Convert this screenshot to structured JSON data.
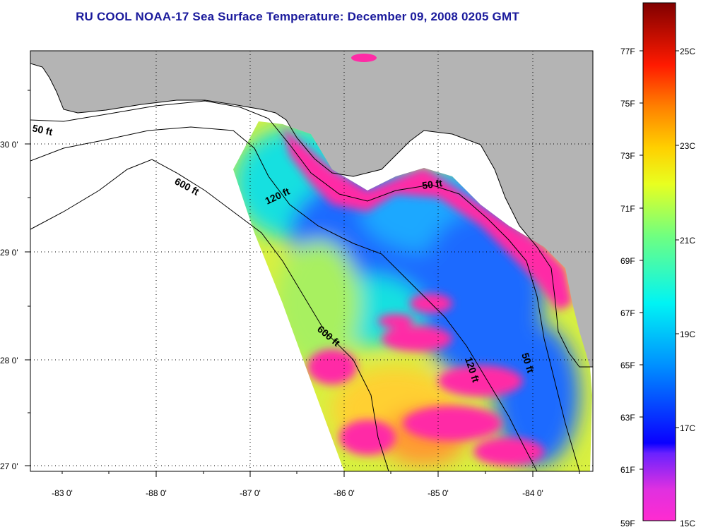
{
  "title": "RU COOL  NOAA-17  Sea Surface Temperature:  December 09, 2008 0205 GMT",
  "map": {
    "lat_labels": [
      "30 0'",
      "29 0'",
      "28 0'",
      "27 0'"
    ],
    "lon_labels": [
      "-88 0'",
      "-87 0'",
      "-86 0'",
      "-85 0'",
      "-84 0'",
      "-83 0'"
    ],
    "contour_labels": [
      "50 ft",
      "600 ft",
      "120 ft",
      "50 ft",
      "600 ft",
      "120 ft",
      "50 ft"
    ],
    "colors": {
      "land": "#b4b4b4",
      "no_data": "#ffffff",
      "cold": "#ff2ba6",
      "cool": "#1f6bff",
      "mid": "#19e0e0",
      "warm": "#d8f040"
    }
  },
  "colorbar": {
    "fahrenheit_labels": [
      "77F",
      "75F",
      "73F",
      "71F",
      "69F",
      "67F",
      "65F",
      "63F",
      "61F",
      "59F"
    ],
    "celsius_labels": [
      "25C",
      "23C",
      "21C",
      "19C",
      "17C",
      "15C"
    ],
    "range_f": [
      59,
      79
    ],
    "range_c": [
      15,
      26
    ]
  }
}
